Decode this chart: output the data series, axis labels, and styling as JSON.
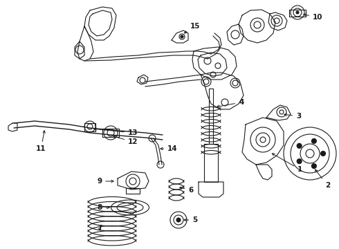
{
  "bg": "#ffffff",
  "lc": "#1a1a1a",
  "lw": 0.8,
  "fig_w": 4.9,
  "fig_h": 3.6,
  "dpi": 100
}
